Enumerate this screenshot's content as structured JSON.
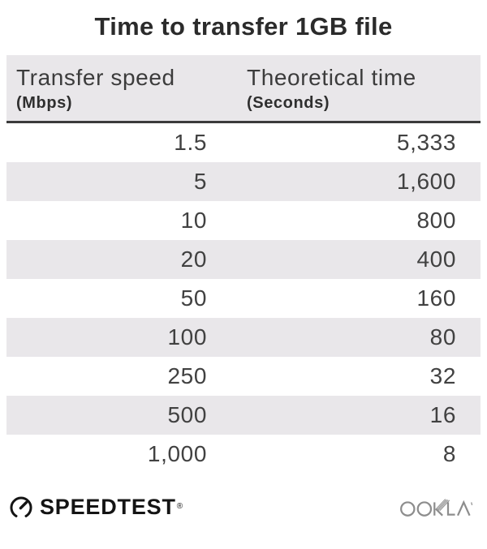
{
  "title": "Time to transfer 1GB file",
  "table": {
    "columns": [
      {
        "label": "Transfer speed",
        "unit": "(Mbps)"
      },
      {
        "label": "Theoretical time",
        "unit": "(Seconds)"
      }
    ],
    "rows": [
      {
        "speed": "1.5",
        "time": "5,333"
      },
      {
        "speed": "5",
        "time": "1,600"
      },
      {
        "speed": "10",
        "time": "800"
      },
      {
        "speed": "20",
        "time": "400"
      },
      {
        "speed": "50",
        "time": "160"
      },
      {
        "speed": "100",
        "time": "80"
      },
      {
        "speed": "250",
        "time": "32"
      },
      {
        "speed": "500",
        "time": "16"
      },
      {
        "speed": "1,000",
        "time": "8"
      }
    ]
  },
  "footer": {
    "speedtest_label": "SPEEDTEST",
    "registered_mark": "®",
    "ookla_label": "OOKLA"
  },
  "icons": {
    "gauge": "speedometer-gauge-icon",
    "ookla": "ookla-wordmark"
  },
  "colors": {
    "title": "#2b2b2b",
    "header_bg": "#e9e7ea",
    "stripe": "#e9e7ea",
    "rule": "#3b3b3b",
    "row_text": "#414141",
    "speedtest": "#141414",
    "ookla": "#8d8d8d"
  },
  "chart_data": {
    "type": "table",
    "title": "Time to transfer 1GB file",
    "columns": [
      "Transfer speed (Mbps)",
      "Theoretical time (Seconds)"
    ],
    "rows": [
      [
        1.5,
        5333
      ],
      [
        5,
        1600
      ],
      [
        10,
        800
      ],
      [
        20,
        400
      ],
      [
        50,
        160
      ],
      [
        100,
        80
      ],
      [
        250,
        32
      ],
      [
        500,
        16
      ],
      [
        1000,
        8
      ]
    ],
    "layout": {
      "striped_rows": "even rows shaded",
      "value_alignment": "right"
    }
  }
}
